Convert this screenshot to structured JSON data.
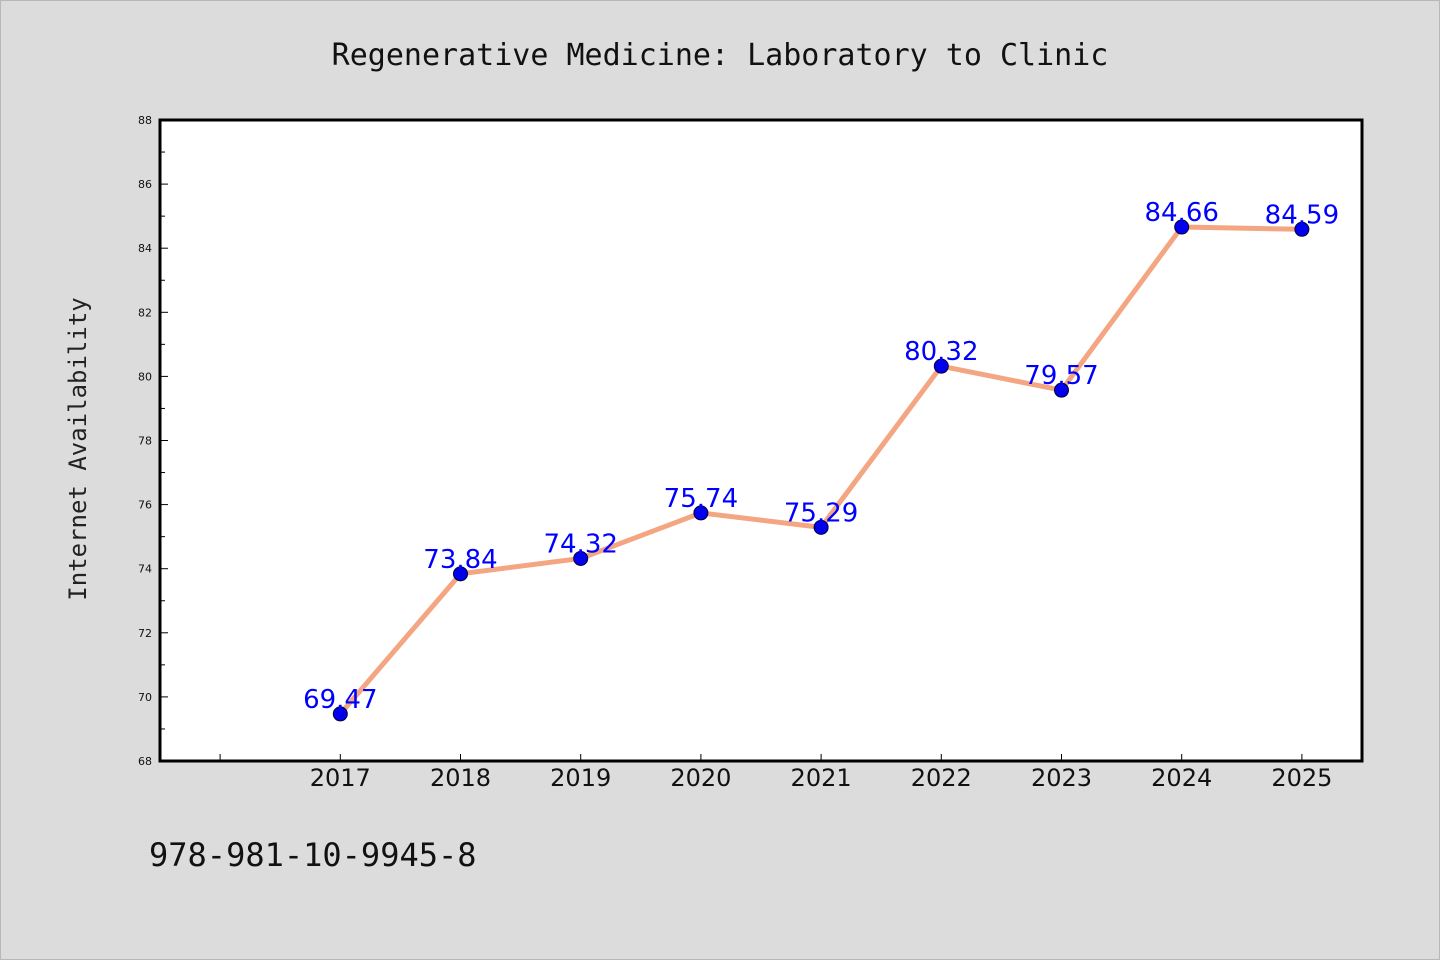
{
  "chart_data": {
    "type": "line",
    "title": "Regenerative Medicine: Laboratory to Clinic",
    "xlabel": "",
    "ylabel": "Internet Availability",
    "categories": [
      "2017",
      "2018",
      "2019",
      "2020",
      "2021",
      "2022",
      "2023",
      "2024",
      "2025"
    ],
    "series": [
      {
        "values": [
          69.47,
          73.84,
          74.32,
          75.74,
          75.29,
          80.32,
          79.57,
          84.66,
          84.59
        ],
        "labels": [
          "69.47",
          "73.84",
          "74.32",
          "75.74",
          "75.29",
          "80.32",
          "79.57",
          "84.66",
          "84.59"
        ]
      }
    ],
    "ylim": [
      68,
      88
    ],
    "xlim": [
      2015.5,
      2025.5
    ],
    "y_ticks": [
      68,
      70,
      72,
      74,
      76,
      78,
      80,
      82,
      84,
      86,
      88
    ],
    "y_tick_labels": [
      "68",
      "70",
      "72",
      "74",
      "76",
      "78",
      "80",
      "82",
      "84",
      "86",
      "88"
    ],
    "grid": false,
    "legend": "none",
    "colors": {
      "line": "#f4a582",
      "marker": "#0000ee",
      "data_label": "#0000ff",
      "background": "#dcdcdc",
      "plot_area": "#ffffff"
    }
  },
  "footer": {
    "isbn": "978-981-10-9945-8"
  }
}
